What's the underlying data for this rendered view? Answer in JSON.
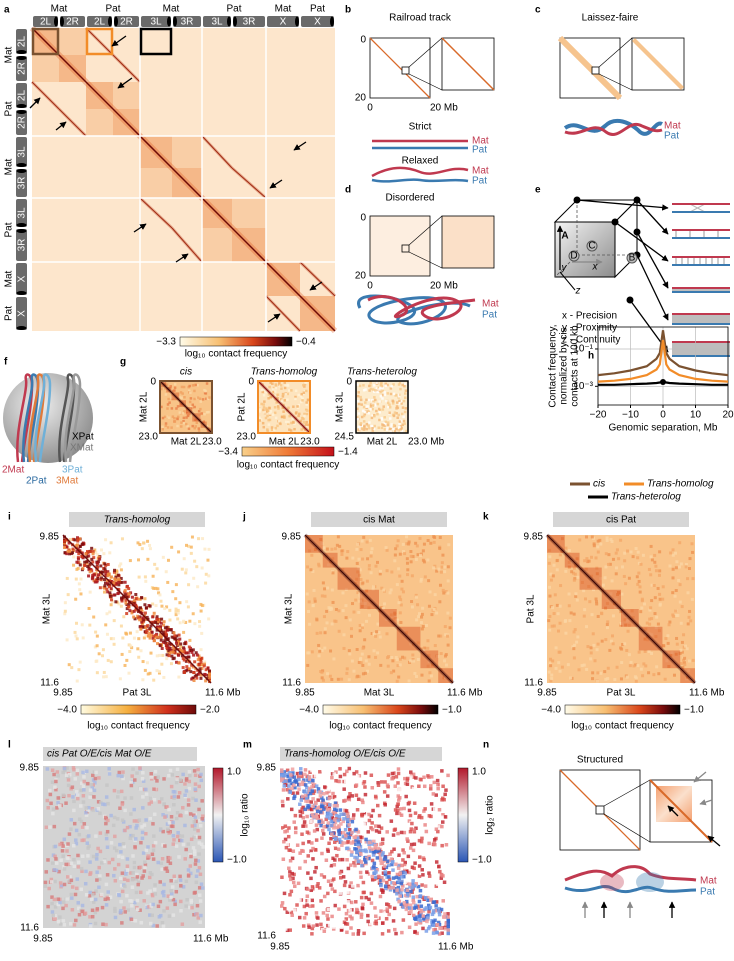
{
  "figure": {
    "a": {
      "label": "a",
      "col_parents": [
        "Mat",
        "Pat",
        "Mat",
        "Pat",
        "Mat",
        "Pat"
      ],
      "col_arms": [
        "2L",
        "2R",
        "2L",
        "2R",
        "3L",
        "3R",
        "3L",
        "3R",
        "X",
        "X"
      ],
      "row_parents": [
        "Mat",
        "Pat",
        "Mat",
        "Pat",
        "Mat",
        "Pat"
      ],
      "row_arms": [
        "2L",
        "2R",
        "2L",
        "2R",
        "3L",
        "3R",
        "3L",
        "3R",
        "X",
        "X"
      ],
      "colorbar": {
        "min": "−3.3",
        "max": "−0.4",
        "label": "log₁₀ contact frequency"
      }
    },
    "b": {
      "label": "b",
      "title": "Railroad track",
      "y_ticks": [
        "0",
        "20"
      ],
      "x_ticks": [
        "0",
        "20 Mb"
      ],
      "strict": {
        "title": "Strict",
        "mat": "Mat",
        "pat": "Pat"
      },
      "relaxed": {
        "title": "Relaxed",
        "mat": "Mat",
        "pat": "Pat"
      }
    },
    "c": {
      "label": "c",
      "title": "Laissez-faire",
      "mat": "Mat",
      "pat": "Pat"
    },
    "d": {
      "label": "d",
      "title": "Disordered",
      "y_ticks": [
        "0",
        "20"
      ],
      "x_ticks": [
        "0",
        "20 Mb"
      ],
      "mat": "Mat",
      "pat": "Pat"
    },
    "e": {
      "label": "e",
      "points": [
        "A",
        "B",
        "C",
        "D"
      ],
      "axes": [
        "x",
        "y",
        "z"
      ],
      "legend": [
        "x - Precision",
        "y - Proximity",
        "z - Continuity"
      ]
    },
    "f": {
      "label": "f",
      "chromosomes": [
        "XPat",
        "XMat",
        "2Mat",
        "2Pat",
        "3Pat",
        "3Mat"
      ]
    },
    "g": {
      "label": "g",
      "maps": [
        {
          "title": "cis",
          "ylabel": "Mat 2L",
          "y_ticks": [
            "0",
            "23.0"
          ],
          "xlabel": "Mat 2L",
          "x_end": "23.0"
        },
        {
          "title": "Trans-homolog",
          "ylabel": "Pat 2L",
          "y_ticks": [
            "0",
            "23.0"
          ],
          "xlabel": "Mat 2L",
          "x_end": "23.0"
        },
        {
          "title": "Trans-heterolog",
          "ylabel": "Mat 3L",
          "y_ticks": [
            "0",
            "24.5"
          ],
          "xlabel": "Mat 2L",
          "x_end": "23.0 Mb"
        }
      ],
      "colorbar": {
        "min": "−3.4",
        "max": "−1.4",
        "label": "log₁₀ contact frequency"
      }
    },
    "h": {
      "label": "h"
    },
    "i": {
      "label": "i",
      "title": "Trans-homolog",
      "ylabel": "Mat 3L",
      "xlabel": "Pat 3L",
      "y_ticks": [
        "9.85",
        "11.6"
      ],
      "x_ticks": [
        "9.85",
        "11.6 Mb"
      ],
      "colorbar": {
        "min": "−4.0",
        "max": "−2.0",
        "label": "log₁₀ contact frequency"
      }
    },
    "j": {
      "label": "j",
      "title": "cis Mat",
      "ylabel": "Mat 3L",
      "xlabel": "Mat 3L",
      "y_ticks": [
        "9.85",
        "11.6"
      ],
      "x_ticks": [
        "9.85",
        "11.6 Mb"
      ],
      "colorbar": {
        "min": "−4.0",
        "max": "−1.0",
        "label": "log₁₀ contact frequency"
      }
    },
    "k": {
      "label": "k",
      "title": "cis Pat",
      "ylabel": "Pat 3L",
      "xlabel": "Pat 3L",
      "y_ticks": [
        "9.85",
        "11.6"
      ],
      "x_ticks": [
        "9.85",
        "11.6 Mb"
      ],
      "colorbar": {
        "min": "−4.0",
        "max": "−1.0",
        "label": "log₁₀ contact frequency"
      }
    },
    "l": {
      "label": "l",
      "title": "cis Pat O/E/cis Mat O/E",
      "y_ticks": [
        "9.85",
        "11.6"
      ],
      "x_ticks": [
        "9.85",
        "11.6 Mb"
      ],
      "colorbar": {
        "max": "1.0",
        "min": "−1.0",
        "label": "log₁₀ ratio"
      }
    },
    "m": {
      "label": "m",
      "title": "Trans-homolog O/E/cis O/E",
      "y_ticks": [
        "9.85",
        "11.6"
      ],
      "x_ticks": [
        "9.85",
        "11.6 Mb"
      ],
      "colorbar": {
        "max": "1.0",
        "min": "−1.0",
        "label": "log₂ ratio"
      }
    },
    "n": {
      "label": "n",
      "title": "Structured",
      "mat": "Mat",
      "pat": "Pat"
    }
  },
  "chart_data": {
    "type": "line",
    "ylabel": [
      "Contact frequency,",
      "normalized by cis",
      "contacts at 100 kb"
    ],
    "xlabel": "Genomic separation, Mb",
    "x": [
      -20,
      -15,
      -10,
      -5,
      -2,
      -1,
      0,
      1,
      2,
      5,
      10,
      15,
      20
    ],
    "series": [
      {
        "name": "cis",
        "color": "#7b5230",
        "values": [
          0.004,
          0.005,
          0.007,
          0.012,
          0.03,
          0.06,
          1,
          0.06,
          0.03,
          0.012,
          0.007,
          0.005,
          0.004
        ]
      },
      {
        "name": "Trans-homolog",
        "color": "#f28c28",
        "values": [
          0.0018,
          0.002,
          0.0025,
          0.004,
          0.008,
          0.015,
          0.3,
          0.015,
          0.008,
          0.004,
          0.0025,
          0.002,
          0.0018
        ]
      },
      {
        "name": "Trans-heterolog",
        "color": "#000000",
        "values": [
          0.0012,
          0.0012,
          0.0013,
          0.0014,
          0.0015,
          0.0016,
          0.0017,
          0.0016,
          0.0015,
          0.0014,
          0.0013,
          0.0012,
          0.0012
        ]
      }
    ],
    "xlim": [
      -20,
      20
    ],
    "xticks": [
      {
        "value": -20,
        "label": "−20"
      },
      {
        "value": -10,
        "label": "−10"
      },
      0,
      10,
      20
    ],
    "ylim": [
      0.0001,
      1.5
    ],
    "yscale": "log",
    "yticks": [
      {
        "value": 0.1,
        "label": "10⁻¹"
      },
      {
        "value": 0.001,
        "label": "10⁻³"
      }
    ],
    "grid": true,
    "legend": "bottom"
  }
}
